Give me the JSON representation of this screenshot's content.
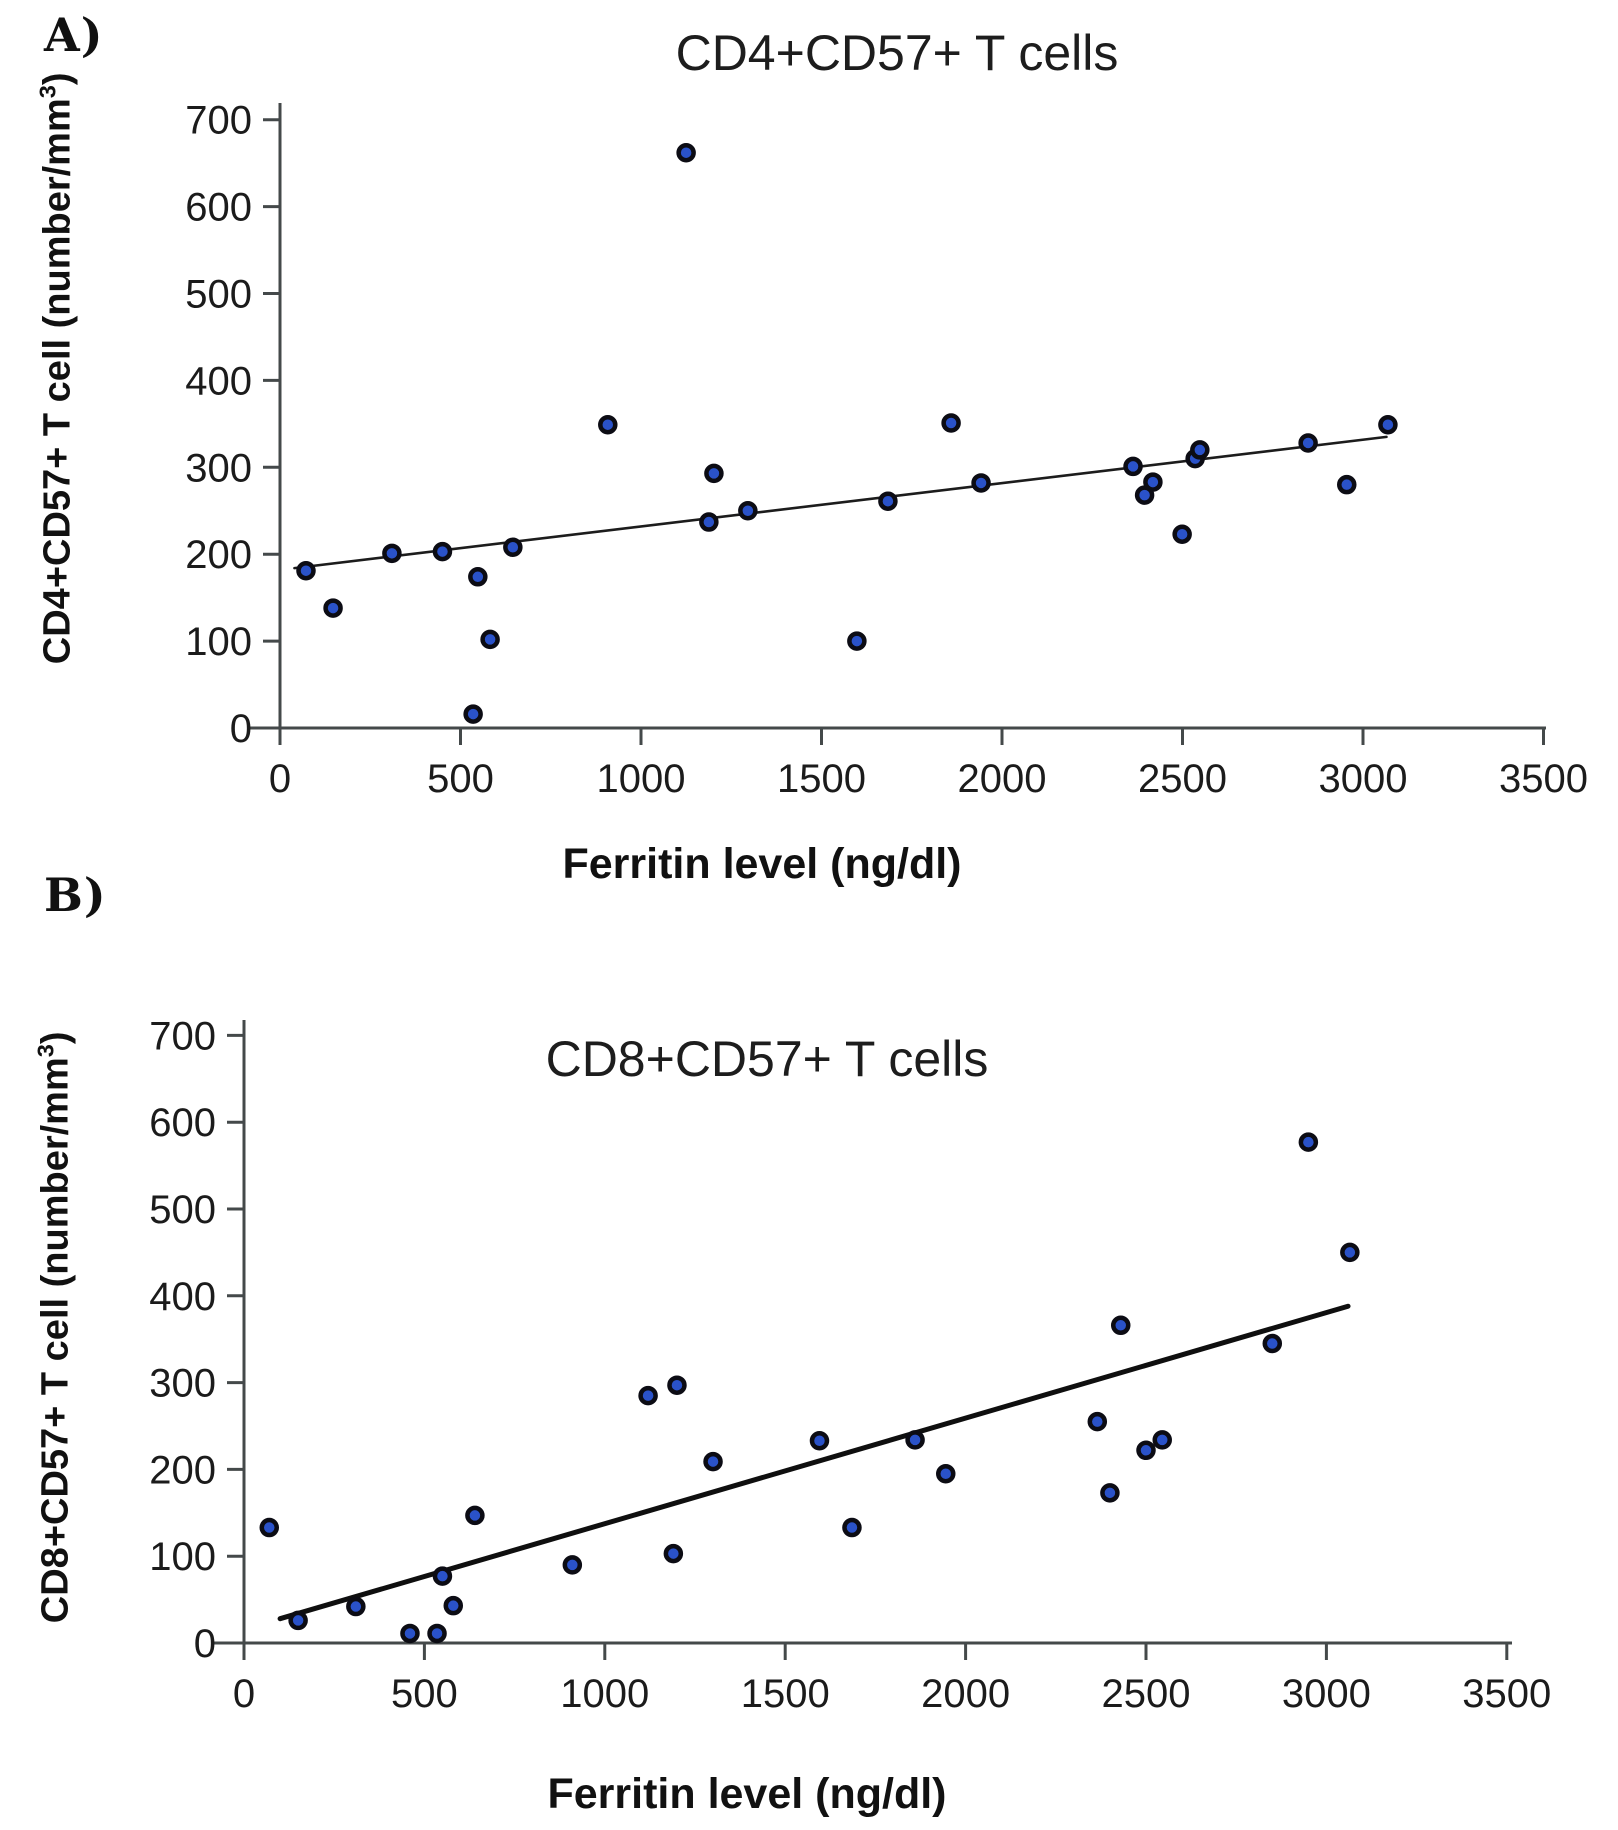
{
  "figure": {
    "panels": [
      {
        "panel_label": "A)",
        "title": "CD4+CD57+ T cells",
        "y_axis_label_pre": "CD4+CD57+ T cell (number/mm",
        "y_axis_label_sup": "3",
        "y_axis_label_post": ")",
        "x_axis_label": "Ferritin level (ng/dl)"
      },
      {
        "panel_label": "B)",
        "title": "CD8+CD57+ T cells",
        "y_axis_label_pre": "CD8+CD57+ T cell (number/mm",
        "y_axis_label_sup": "3",
        "y_axis_label_post": ")",
        "x_axis_label": "Ferritin level (ng/dl)"
      }
    ]
  },
  "colors": {
    "point_fill": "#2a52c9",
    "point_stroke": "#0c0c14",
    "axis": "#44494a",
    "tick_text": "#1b1b1b",
    "trend_a": "#1c1c1c",
    "trend_b": "#0f0f0f"
  },
  "chart_data": [
    {
      "type": "scatter",
      "title": "CD4+CD57+ T cells",
      "xlabel": "Ferritin level (ng/dl)",
      "ylabel": "CD4+CD57+ T cell (number/mm3)",
      "xlim": [
        0,
        3500
      ],
      "ylim": [
        0,
        700
      ],
      "x_ticks": [
        0,
        500,
        1000,
        1500,
        2000,
        2500,
        3000,
        3500
      ],
      "y_ticks": [
        0,
        100,
        200,
        300,
        400,
        500,
        600,
        700
      ],
      "grid": false,
      "legend": "none",
      "points": [
        [
          72,
          181
        ],
        [
          147,
          138
        ],
        [
          310,
          201
        ],
        [
          450,
          203
        ],
        [
          535,
          16
        ],
        [
          548,
          174
        ],
        [
          582,
          102
        ],
        [
          645,
          208
        ],
        [
          908,
          349
        ],
        [
          1125,
          662
        ],
        [
          1188,
          237
        ],
        [
          1202,
          293
        ],
        [
          1296,
          250
        ],
        [
          1598,
          100
        ],
        [
          1684,
          261
        ],
        [
          1859,
          351
        ],
        [
          1942,
          282
        ],
        [
          2363,
          301
        ],
        [
          2395,
          268
        ],
        [
          2418,
          283
        ],
        [
          2499,
          223
        ],
        [
          2535,
          310
        ],
        [
          2548,
          320
        ],
        [
          2848,
          328
        ],
        [
          2955,
          280
        ],
        [
          3069,
          349
        ]
      ],
      "trendline": {
        "x1": 40,
        "y1": 184,
        "x2": 3065,
        "y2": 335
      }
    },
    {
      "type": "scatter",
      "title": "CD8+CD57+ T cells",
      "xlabel": "Ferritin level (ng/dl)",
      "ylabel": "CD8+CD57+ T cell (number/mm3)",
      "xlim": [
        0,
        3500
      ],
      "ylim": [
        0,
        700
      ],
      "x_ticks": [
        0,
        500,
        1000,
        1500,
        2000,
        2500,
        3000,
        3500
      ],
      "y_ticks": [
        0,
        100,
        200,
        300,
        400,
        500,
        600,
        700
      ],
      "grid": false,
      "legend": "none",
      "points": [
        [
          70,
          133
        ],
        [
          150,
          26
        ],
        [
          310,
          42
        ],
        [
          460,
          11
        ],
        [
          535,
          11
        ],
        [
          550,
          77
        ],
        [
          580,
          43
        ],
        [
          640,
          147
        ],
        [
          910,
          90
        ],
        [
          1120,
          285
        ],
        [
          1190,
          103
        ],
        [
          1200,
          297
        ],
        [
          1300,
          209
        ],
        [
          1595,
          233
        ],
        [
          1685,
          133
        ],
        [
          1860,
          234
        ],
        [
          1945,
          195
        ],
        [
          2365,
          255
        ],
        [
          2400,
          173
        ],
        [
          2430,
          366
        ],
        [
          2500,
          222
        ],
        [
          2545,
          234
        ],
        [
          2850,
          345
        ],
        [
          2950,
          577
        ],
        [
          3065,
          450
        ]
      ],
      "trendline": {
        "x1": 100,
        "y1": 28,
        "x2": 3060,
        "y2": 388
      }
    }
  ]
}
